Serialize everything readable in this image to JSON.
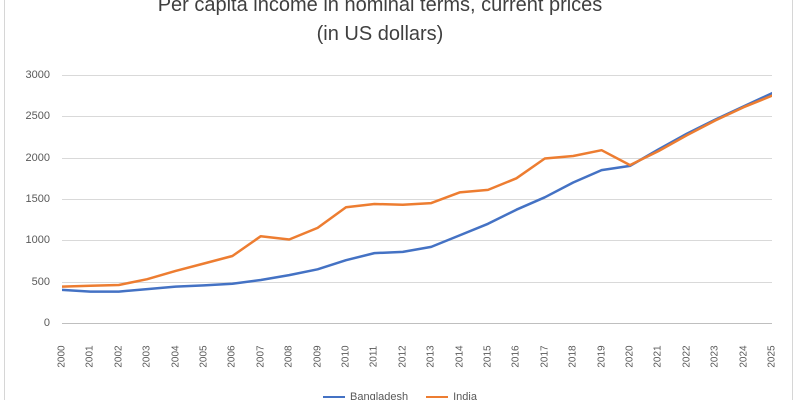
{
  "title": {
    "line1": "Per capita income in nominal terms, current prices",
    "line2": "(in US dollars)"
  },
  "chart_data": {
    "type": "line",
    "x": [
      2000,
      2001,
      2002,
      2003,
      2004,
      2005,
      2006,
      2007,
      2008,
      2009,
      2010,
      2011,
      2012,
      2013,
      2014,
      2015,
      2016,
      2017,
      2018,
      2019,
      2020,
      2021,
      2022,
      2023,
      2024,
      2025
    ],
    "series": [
      {
        "name": "Bangladesh",
        "color": "#4472C4",
        "values": [
          400,
          380,
          380,
          410,
          440,
          455,
          475,
          520,
          580,
          650,
          760,
          845,
          860,
          920,
          1060,
          1200,
          1370,
          1520,
          1700,
          1850,
          1900,
          2100,
          2290,
          2460,
          2620,
          2780
        ]
      },
      {
        "name": "India",
        "color": "#ED7D31",
        "values": [
          440,
          450,
          460,
          530,
          630,
          720,
          810,
          1050,
          1010,
          1150,
          1400,
          1440,
          1430,
          1450,
          1580,
          1610,
          1750,
          1990,
          2020,
          2090,
          1910,
          2080,
          2270,
          2450,
          2610,
          2750
        ]
      }
    ],
    "title": "Per capita income in nominal terms, current prices (in US dollars)",
    "xlabel": "",
    "ylabel": "",
    "ylim": [
      0,
      3000
    ],
    "y_ticks": [
      0,
      500,
      1000,
      1500,
      2000,
      2500,
      3000
    ],
    "grid": true,
    "legend_position": "bottom",
    "axis_text_color": "#595959",
    "gridline_color": "#d9d9d9"
  },
  "legend": {
    "items": [
      {
        "label": "Bangladesh",
        "color": "#4472C4"
      },
      {
        "label": "India",
        "color": "#ED7D31"
      }
    ]
  }
}
